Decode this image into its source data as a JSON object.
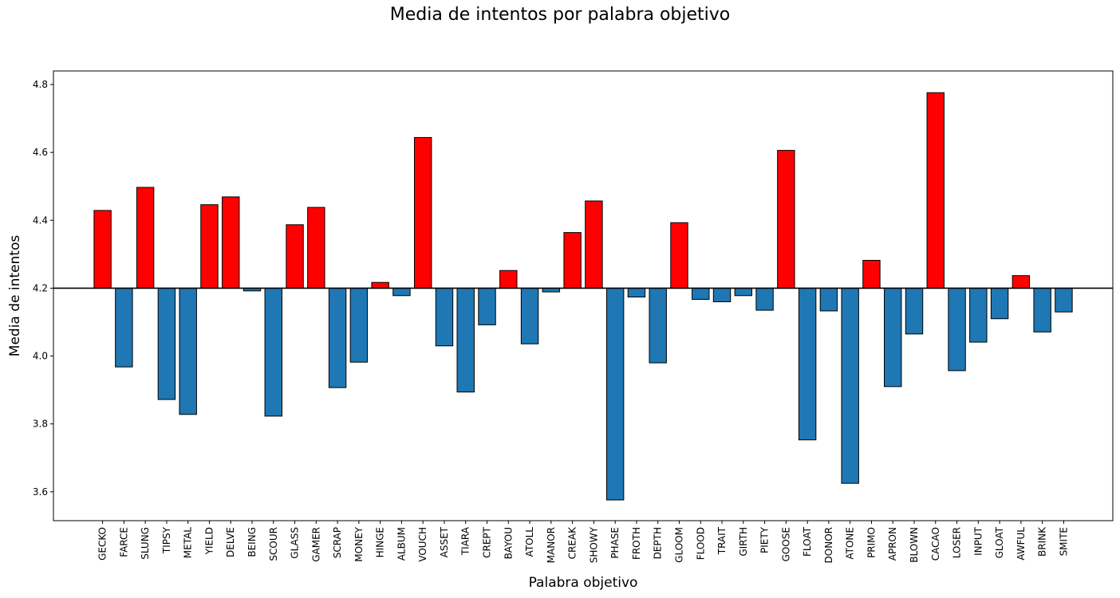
{
  "chart_data": {
    "type": "bar",
    "title": "Media de intentos por palabra objetivo",
    "xlabel": "Palabra objetivo",
    "ylabel": "Media de intentos",
    "baseline": 4.2,
    "ylim": [
      3.515,
      4.84
    ],
    "yticks": [
      3.6,
      3.8,
      4.0,
      4.2,
      4.4,
      4.6,
      4.8
    ],
    "ytick_labels": [
      "3.6",
      "3.8",
      "4.0",
      "4.2",
      "4.4",
      "4.6",
      "4.8"
    ],
    "grid": false,
    "colors": {
      "above": "#ff0000",
      "below": "#1f77b4",
      "edge": "#000000",
      "baseline": "#000000"
    },
    "categories": [
      "GECKO",
      "FARCE",
      "SLUNG",
      "TIPSY",
      "METAL",
      "YIELD",
      "DELVE",
      "BEING",
      "SCOUR",
      "GLASS",
      "GAMER",
      "SCRAP",
      "MONEY",
      "HINGE",
      "ALBUM",
      "VOUCH",
      "ASSET",
      "TIARA",
      "CREPT",
      "BAYOU",
      "ATOLL",
      "MANOR",
      "CREAK",
      "SHOWY",
      "PHASE",
      "FROTH",
      "DEPTH",
      "GLOOM",
      "FLOOD",
      "TRAIT",
      "GIRTH",
      "PIETY",
      "GOOSE",
      "FLOAT",
      "DONOR",
      "ATONE",
      "PRIMO",
      "APRON",
      "BLOWN",
      "CACAO",
      "LOSER",
      "INPUT",
      "GLOAT",
      "AWFUL",
      "BRINK",
      "SMITE"
    ],
    "values": [
      4.429,
      3.968,
      4.497,
      3.872,
      3.828,
      4.446,
      4.469,
      4.192,
      3.823,
      4.387,
      4.438,
      3.907,
      3.982,
      4.217,
      4.178,
      4.644,
      4.03,
      3.894,
      4.092,
      4.252,
      4.036,
      4.189,
      4.364,
      4.457,
      3.576,
      4.174,
      3.98,
      4.393,
      4.167,
      4.16,
      4.178,
      4.135,
      4.606,
      3.753,
      4.133,
      3.625,
      4.282,
      3.91,
      4.065,
      4.776,
      3.957,
      4.041,
      4.11,
      4.237,
      4.071,
      4.13
    ]
  }
}
